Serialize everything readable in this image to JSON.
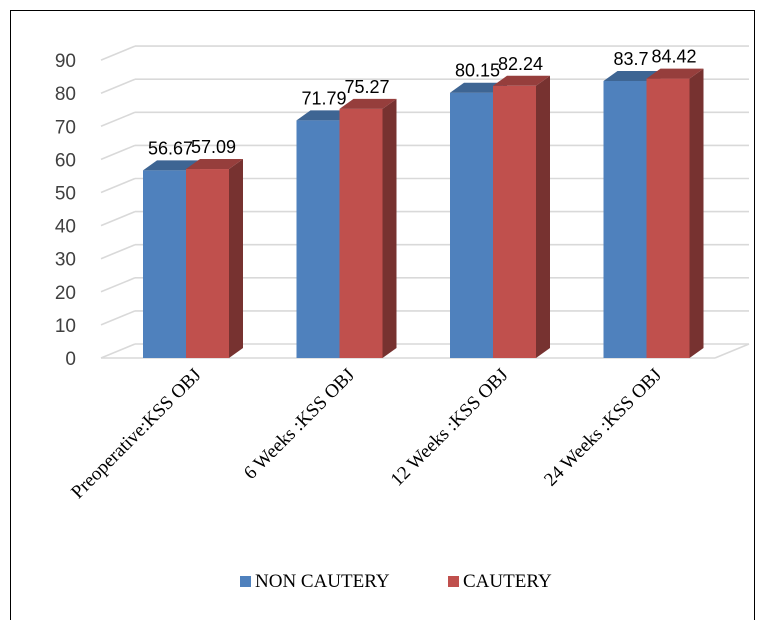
{
  "chart_data": {
    "type": "bar",
    "title": "",
    "xlabel": "",
    "ylabel": "",
    "categories": [
      "Preoperative:KSS OBJ",
      "6 Weeks :KSS OBJ",
      "12 Weeks :KSS OBJ",
      "24 Weeks :KSS OBJ"
    ],
    "series": [
      {
        "name": "NON CAUTERY",
        "color": "#4f81bd",
        "values": [
          56.67,
          71.79,
          80.15,
          83.7
        ]
      },
      {
        "name": "CAUTERY",
        "color": "#c0504d",
        "values": [
          57.09,
          75.27,
          82.24,
          84.42
        ]
      }
    ],
    "data_labels": [
      [
        "56.67",
        "71.79",
        "80.15",
        "83.7"
      ],
      [
        "57.09",
        "75.27",
        "82.24",
        "84.42"
      ]
    ],
    "ylim": [
      0,
      90
    ],
    "yticks": [
      0,
      10,
      20,
      30,
      40,
      50,
      60,
      70,
      80,
      90
    ],
    "grid": true,
    "legend_position": "bottom"
  }
}
